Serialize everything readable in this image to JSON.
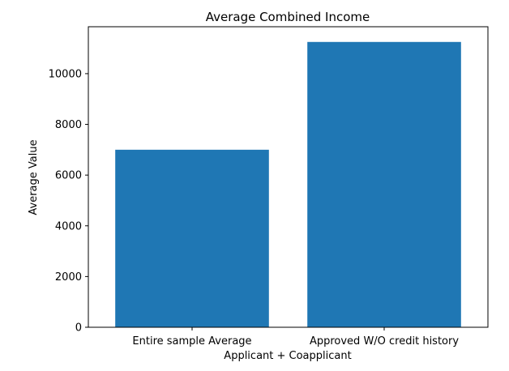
{
  "chart_data": {
    "type": "bar",
    "title": "Average Combined Income",
    "xlabel": "Applicant + Coapplicant",
    "ylabel": "Average Value",
    "categories": [
      "Entire sample Average",
      "Approved W/O credit history"
    ],
    "values": [
      7000,
      11250
    ],
    "ylim": [
      0,
      11850
    ],
    "yticks": [
      0,
      2000,
      4000,
      6000,
      8000,
      10000
    ],
    "ytick_labels": [
      "0",
      "2000",
      "4000",
      "6000",
      "8000",
      "10000"
    ],
    "grid": false,
    "legend": "none",
    "bar_color": "#1f77b4"
  }
}
